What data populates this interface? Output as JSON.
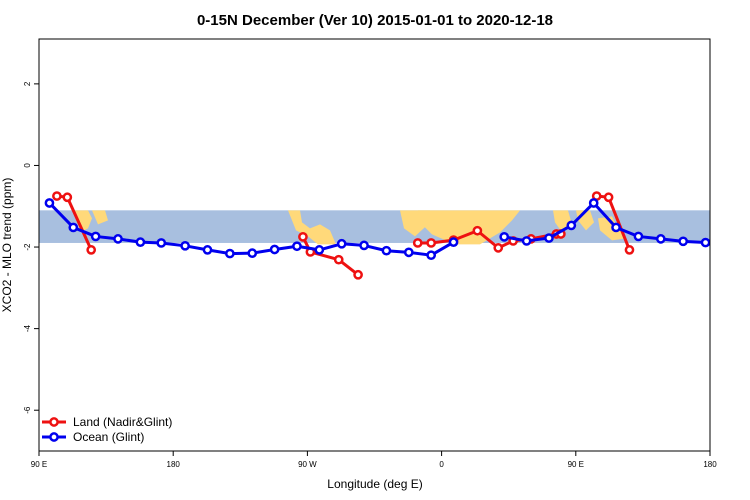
{
  "chart_data": {
    "type": "line",
    "title": "0-15N December (Ver 10)   2015-01-01 to 2020-12-18",
    "xlabel": "Longitude (deg E)",
    "ylabel": "XCO2 - MLO trend (ppm)",
    "xlim": [
      90,
      540
    ],
    "ylim": [
      -7,
      3.1
    ],
    "x_ticks": [
      {
        "value": 90,
        "label": "90 E"
      },
      {
        "value": 180,
        "label": "180"
      },
      {
        "value": 270,
        "label": "90 W"
      },
      {
        "value": 360,
        "label": "0"
      },
      {
        "value": 450,
        "label": "90 E"
      },
      {
        "value": 540,
        "label": "180"
      }
    ],
    "y_ticks": [
      {
        "value": 2,
        "label": "2"
      },
      {
        "value": 0,
        "label": "0"
      },
      {
        "value": -2,
        "label": "-2"
      },
      {
        "value": -4,
        "label": "-4"
      },
      {
        "value": -6,
        "label": "-6"
      }
    ],
    "map_band": {
      "y_top": -1.1,
      "y_bottom": -1.9,
      "ocean_color": "#a8bfdf",
      "land_color": "#ffd97a"
    },
    "series": [
      {
        "name": "Land (Nadir&Glint)",
        "color": "#ee1111",
        "segments": [
          [
            [
              102,
              -0.75
            ],
            [
              109,
              -0.78
            ],
            [
              125,
              -2.07
            ]
          ],
          [
            [
              267,
              -1.75
            ],
            [
              272,
              -2.12
            ],
            [
              291,
              -2.31
            ],
            [
              304,
              -2.68
            ]
          ],
          [
            [
              344,
              -1.9
            ],
            [
              353,
              -1.9
            ],
            [
              368,
              -1.83
            ],
            [
              384,
              -1.6
            ],
            [
              398,
              -2.02
            ],
            [
              408,
              -1.85
            ],
            [
              420,
              -1.8
            ],
            [
              437,
              -1.68
            ],
            [
              440,
              -1.68
            ]
          ],
          [
            [
              464,
              -0.75
            ],
            [
              472,
              -0.78
            ],
            [
              486,
              -2.07
            ]
          ]
        ]
      },
      {
        "name": "Ocean (Glint)",
        "color": "#0000ee",
        "segments": [
          [
            [
              97,
              -0.92
            ],
            [
              113,
              -1.52
            ],
            [
              128,
              -1.74
            ],
            [
              143,
              -1.8
            ],
            [
              158,
              -1.88
            ],
            [
              172,
              -1.9
            ],
            [
              188,
              -1.97
            ],
            [
              203,
              -2.07
            ],
            [
              218,
              -2.16
            ],
            [
              233,
              -2.15
            ],
            [
              248,
              -2.06
            ],
            [
              263,
              -1.98
            ],
            [
              278,
              -2.07
            ],
            [
              293,
              -1.92
            ],
            [
              308,
              -1.96
            ],
            [
              323,
              -2.09
            ],
            [
              338,
              -2.13
            ],
            [
              353,
              -2.2
            ],
            [
              368,
              -1.88
            ]
          ],
          [
            [
              402,
              -1.75
            ],
            [
              417,
              -1.85
            ],
            [
              432,
              -1.78
            ],
            [
              447,
              -1.47
            ],
            [
              462,
              -0.92
            ],
            [
              477,
              -1.52
            ],
            [
              492,
              -1.74
            ],
            [
              507,
              -1.8
            ],
            [
              522,
              -1.86
            ],
            [
              537,
              -1.89
            ]
          ]
        ]
      }
    ],
    "legend_position": "bottom-left"
  }
}
